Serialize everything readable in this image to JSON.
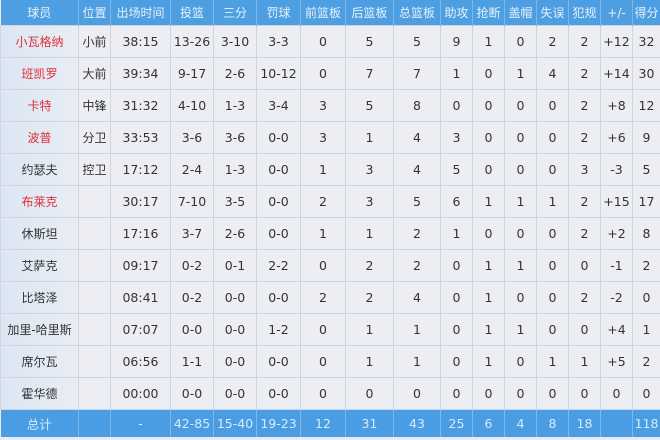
{
  "headers": [
    "球员",
    "位置",
    "出场时间",
    "投篮",
    "三分",
    "罚球",
    "前篮板",
    "后篮板",
    "总篮板",
    "助攻",
    "抢断",
    "盖帽",
    "失误",
    "犯规",
    "+/-",
    "得分"
  ],
  "players": [
    {
      "name": "小瓦格纳",
      "starter": true,
      "stats": [
        "小前",
        "38:15",
        "13-26",
        "3-10",
        "3-3",
        "0",
        "5",
        "5",
        "9",
        "1",
        "0",
        "2",
        "2",
        "+12",
        "32"
      ]
    },
    {
      "name": "班凯罗",
      "starter": true,
      "stats": [
        "大前",
        "39:34",
        "9-17",
        "2-6",
        "10-12",
        "0",
        "7",
        "7",
        "1",
        "0",
        "1",
        "4",
        "2",
        "+14",
        "30"
      ]
    },
    {
      "name": "卡特",
      "starter": true,
      "stats": [
        "中锋",
        "31:32",
        "4-10",
        "1-3",
        "3-4",
        "3",
        "5",
        "8",
        "0",
        "0",
        "0",
        "0",
        "2",
        "+8",
        "12"
      ]
    },
    {
      "name": "波普",
      "starter": true,
      "stats": [
        "分卫",
        "33:53",
        "3-6",
        "3-6",
        "0-0",
        "3",
        "1",
        "4",
        "3",
        "0",
        "0",
        "0",
        "2",
        "+6",
        "9"
      ]
    },
    {
      "name": "约瑟夫",
      "starter": false,
      "stats": [
        "控卫",
        "17:12",
        "2-4",
        "1-3",
        "0-0",
        "1",
        "3",
        "4",
        "5",
        "0",
        "0",
        "0",
        "3",
        "-3",
        "5"
      ]
    },
    {
      "name": "布莱克",
      "starter": true,
      "stats": [
        "",
        "30:17",
        "7-10",
        "3-5",
        "0-0",
        "2",
        "3",
        "5",
        "6",
        "1",
        "1",
        "1",
        "2",
        "+15",
        "17"
      ]
    },
    {
      "name": "休斯坦",
      "starter": false,
      "stats": [
        "",
        "17:16",
        "3-7",
        "2-6",
        "0-0",
        "1",
        "1",
        "2",
        "1",
        "0",
        "0",
        "0",
        "2",
        "+2",
        "8"
      ]
    },
    {
      "name": "艾萨克",
      "starter": false,
      "stats": [
        "",
        "09:17",
        "0-2",
        "0-1",
        "2-2",
        "0",
        "2",
        "2",
        "0",
        "1",
        "1",
        "0",
        "0",
        "-1",
        "2"
      ]
    },
    {
      "name": "比塔泽",
      "starter": false,
      "stats": [
        "",
        "08:41",
        "0-2",
        "0-0",
        "0-0",
        "2",
        "2",
        "4",
        "0",
        "1",
        "0",
        "0",
        "2",
        "-2",
        "0"
      ]
    },
    {
      "name": "加里-哈里斯",
      "starter": false,
      "stats": [
        "",
        "07:07",
        "0-0",
        "0-0",
        "1-2",
        "0",
        "1",
        "1",
        "0",
        "1",
        "1",
        "0",
        "0",
        "+4",
        "1"
      ]
    },
    {
      "name": "席尔瓦",
      "starter": false,
      "stats": [
        "",
        "06:56",
        "1-1",
        "0-0",
        "0-0",
        "0",
        "1",
        "1",
        "0",
        "1",
        "0",
        "1",
        "1",
        "+5",
        "2"
      ]
    },
    {
      "name": "霍华德",
      "starter": false,
      "stats": [
        "",
        "00:00",
        "0-0",
        "0-0",
        "0-0",
        "0",
        "0",
        "0",
        "0",
        "0",
        "0",
        "0",
        "0",
        "0",
        "0"
      ]
    }
  ],
  "totals": [
    "总计",
    "",
    "-",
    "42-85",
    "15-40",
    "19-23",
    "12",
    "31",
    "43",
    "25",
    "6",
    "4",
    "8",
    "18",
    "",
    "118"
  ],
  "colors": {
    "header": "#4d9fe2",
    "highlight_name": "#e0303a"
  }
}
